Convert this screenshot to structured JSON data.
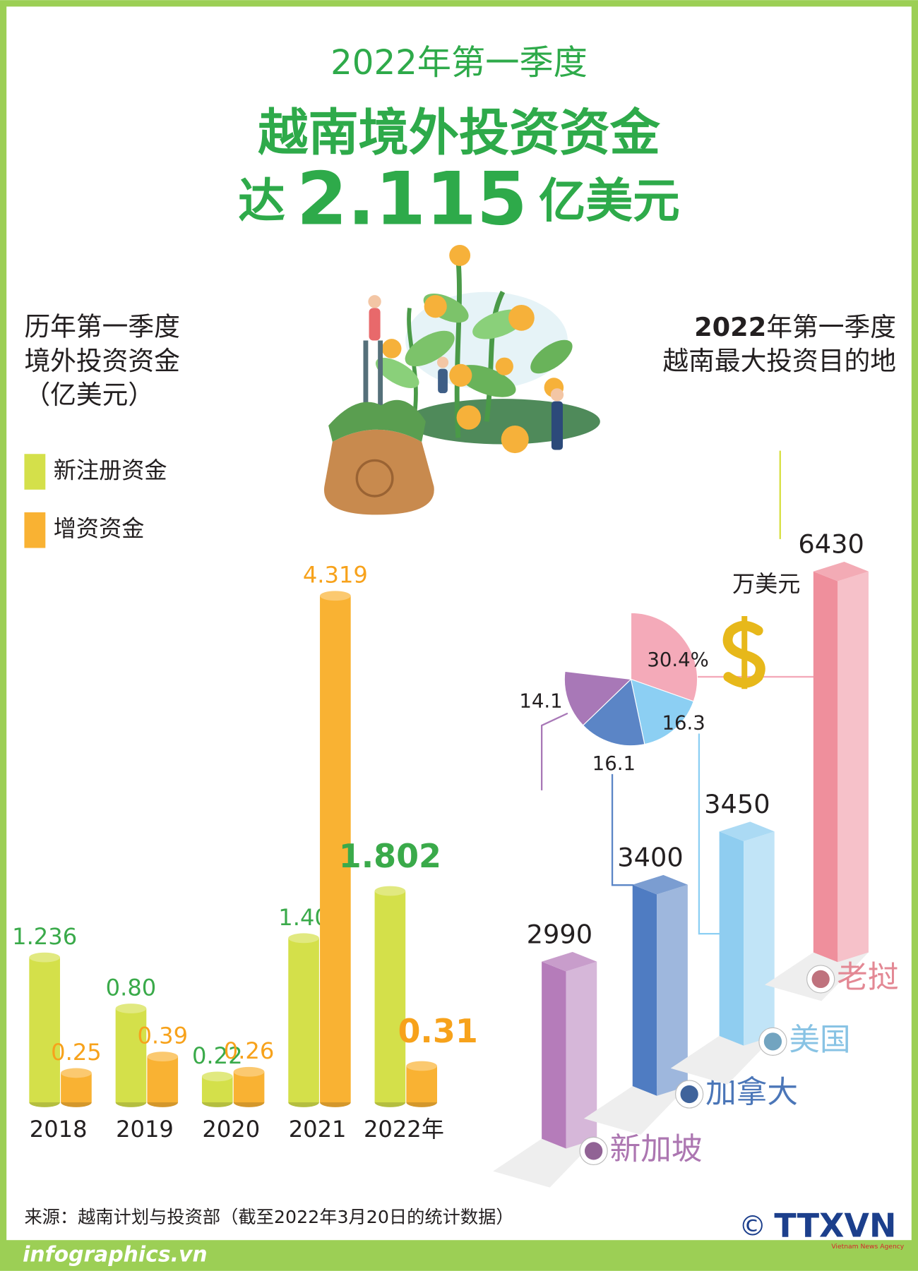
{
  "header": {
    "kicker": "2022年第一季度",
    "title": "越南境外投资资金",
    "lead": "达",
    "amount": "2.115",
    "unit": "亿美元"
  },
  "chart_data": [
    {
      "type": "bar",
      "title": [
        "历年第一季度",
        "境外投资资金",
        "（亿美元）"
      ],
      "categories": [
        "2018",
        "2019",
        "2020",
        "2021",
        "2022年"
      ],
      "series": [
        {
          "name": "新注册资金",
          "color": "#d4e04a",
          "values": [
            1.236,
            0.8,
            0.22,
            1.4,
            1.802
          ],
          "value_labels": [
            "1.236",
            "0.80",
            "0.22",
            "1.40",
            "1.802"
          ]
        },
        {
          "name": "增资资金",
          "color": "#f9b233",
          "values": [
            0.25,
            0.39,
            0.26,
            4.319,
            0.31
          ],
          "value_labels": [
            "0.25",
            "0.39",
            "0.26",
            "4.319",
            "0.31"
          ]
        }
      ]
    },
    {
      "type": "bar3d",
      "title_year": "2022",
      "title": "年第一季度",
      "subtitle": "越南最大投资目的地",
      "unit": "万美元",
      "categories": [
        "新加坡",
        "加拿大",
        "美国",
        "老挝"
      ],
      "values": [
        2990,
        3400,
        3450,
        6430
      ],
      "colors": [
        "#b57cba",
        "#4f7cc2",
        "#8fcdf0",
        "#ef8f9c"
      ]
    },
    {
      "type": "pie",
      "values": [
        30.4,
        16.3,
        16.1,
        14.1
      ],
      "value_labels": [
        "30.4%",
        "16.3",
        "16.1",
        "14.1"
      ],
      "colors": [
        "#f4aab9",
        "#8ccff3",
        "#5b85c6",
        "#a878b7"
      ]
    }
  ],
  "source": "来源：越南计划与投资部（截至2022年3月20日的统计数据）",
  "credit": {
    "symbol": "©",
    "agency": "TTXVN",
    "agency_name": "Vietnam News Agency"
  },
  "footer": "infographics.vn"
}
